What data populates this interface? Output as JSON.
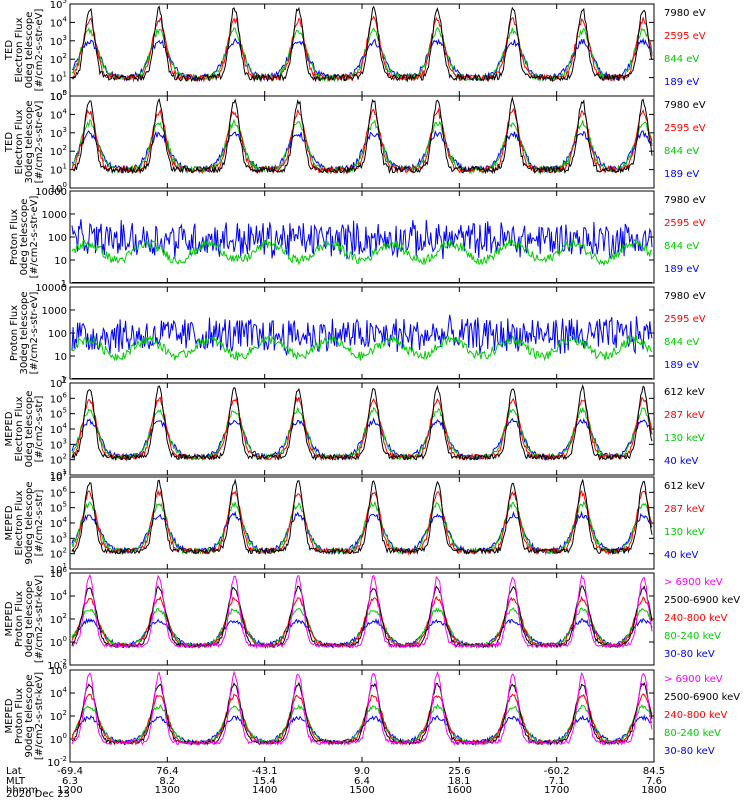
{
  "chart_data": {
    "type": "line",
    "date": "2020 Dec 23",
    "x_axis": {
      "row_labels": [
        "Lat",
        "MLT",
        "hhmm"
      ],
      "ticks": [
        {
          "Lat": "-69.4",
          "MLT": "6.3",
          "hhmm": "1200"
        },
        {
          "Lat": "76.4",
          "MLT": "8.2",
          "hhmm": "1300"
        },
        {
          "Lat": "-43.1",
          "MLT": "15.4",
          "hhmm": "1400"
        },
        {
          "Lat": "9.0",
          "MLT": "6.4",
          "hhmm": "1500"
        },
        {
          "Lat": "25.6",
          "MLT": "18.1",
          "hhmm": "1600"
        },
        {
          "Lat": "-60.2",
          "MLT": "7.1",
          "hhmm": "1700"
        },
        {
          "Lat": "84.5",
          "MLT": "7.6",
          "hhmm": "1800"
        }
      ]
    },
    "panels": [
      {
        "ylabel": [
          "TED",
          "Electron Flux",
          "0deg telescope",
          "[#/cm2-s-str-eV]"
        ],
        "yscale": "log",
        "ylim": [
          1,
          100000
        ],
        "yticks": [
          [
            "10",
            "0"
          ],
          [
            "10",
            "1"
          ],
          [
            "10",
            "2"
          ],
          [
            "10",
            "3"
          ],
          [
            "10",
            "4"
          ],
          [
            "10",
            "5"
          ]
        ],
        "legend": [
          {
            "label": "7980 eV",
            "color": "#000000"
          },
          {
            "label": "2595 eV",
            "color": "#ff0000"
          },
          {
            "label": "844 eV",
            "color": "#00cc00"
          },
          {
            "label": "189 eV",
            "color": "#0000ff"
          }
        ]
      },
      {
        "ylabel": [
          "TED",
          "Electron Flux",
          "30deg telescope",
          "[#/cm2-s-str-eV]"
        ],
        "yscale": "log",
        "ylim": [
          1,
          100000
        ],
        "yticks": [
          [
            "10",
            "0"
          ],
          [
            "10",
            "1"
          ],
          [
            "10",
            "2"
          ],
          [
            "10",
            "3"
          ],
          [
            "10",
            "4"
          ],
          [
            "10",
            "5"
          ]
        ],
        "legend": [
          {
            "label": "7980 eV",
            "color": "#000000"
          },
          {
            "label": "2595 eV",
            "color": "#ff0000"
          },
          {
            "label": "844 eV",
            "color": "#00cc00"
          },
          {
            "label": "189 eV",
            "color": "#0000ff"
          }
        ]
      },
      {
        "ylabel": [
          "Proton Flux",
          "0deg telescope",
          "[#/cm2-s-str-eV]"
        ],
        "yscale": "log",
        "ylim": [
          1,
          10000
        ],
        "yticks": [
          [
            "1",
            ""
          ],
          [
            "10",
            ""
          ],
          [
            "100",
            ""
          ],
          [
            "1000",
            ""
          ],
          [
            "10000",
            ""
          ]
        ],
        "legend": [
          {
            "label": "7980 eV",
            "color": "#000000"
          },
          {
            "label": "2595 eV",
            "color": "#ff0000"
          },
          {
            "label": "844 eV",
            "color": "#00cc00"
          },
          {
            "label": "189 eV",
            "color": "#0000ff"
          }
        ]
      },
      {
        "ylabel": [
          "Proton Flux",
          "30deg telescope",
          "[#/cm2-s-str-eV]"
        ],
        "yscale": "log",
        "ylim": [
          1,
          10000
        ],
        "yticks": [
          [
            "1",
            ""
          ],
          [
            "10",
            ""
          ],
          [
            "100",
            ""
          ],
          [
            "1000",
            ""
          ],
          [
            "10000",
            ""
          ]
        ],
        "legend": [
          {
            "label": "7980 eV",
            "color": "#000000"
          },
          {
            "label": "2595 eV",
            "color": "#ff0000"
          },
          {
            "label": "844 eV",
            "color": "#00cc00"
          },
          {
            "label": "189 eV",
            "color": "#0000ff"
          }
        ]
      },
      {
        "ylabel": [
          "MEPED",
          "Electron Flux",
          "0deg telescope",
          "[#/cm2-s-str]"
        ],
        "yscale": "log",
        "ylim": [
          10,
          10000000
        ],
        "yticks": [
          [
            "10",
            "1"
          ],
          [
            "10",
            "2"
          ],
          [
            "10",
            "3"
          ],
          [
            "10",
            "4"
          ],
          [
            "10",
            "5"
          ],
          [
            "10",
            "6"
          ],
          [
            "10",
            "7"
          ]
        ],
        "legend": [
          {
            "label": "612 keV",
            "color": "#000000"
          },
          {
            "label": "287 keV",
            "color": "#ff0000"
          },
          {
            "label": "130 keV",
            "color": "#00cc00"
          },
          {
            "label": "40 keV",
            "color": "#0000ff"
          }
        ]
      },
      {
        "ylabel": [
          "MEPED",
          "Electron Flux",
          "90deg telescope",
          "[#/cm2-s-str]"
        ],
        "yscale": "log",
        "ylim": [
          10,
          10000000
        ],
        "yticks": [
          [
            "10",
            "1"
          ],
          [
            "10",
            "2"
          ],
          [
            "10",
            "3"
          ],
          [
            "10",
            "4"
          ],
          [
            "10",
            "5"
          ],
          [
            "10",
            "6"
          ],
          [
            "10",
            "7"
          ]
        ],
        "legend": [
          {
            "label": "612 keV",
            "color": "#000000"
          },
          {
            "label": "287 keV",
            "color": "#ff0000"
          },
          {
            "label": "130 keV",
            "color": "#00cc00"
          },
          {
            "label": "40 keV",
            "color": "#0000ff"
          }
        ]
      },
      {
        "ylabel": [
          "MEPED",
          "Proton Flux",
          "0deg telescope",
          "[#/cm2-s-str-keV]"
        ],
        "yscale": "log",
        "ylim": [
          0.01,
          1000000
        ],
        "yticks": [
          [
            "10",
            "-2"
          ],
          [
            "10",
            "0"
          ],
          [
            "10",
            "2"
          ],
          [
            "10",
            "4"
          ],
          [
            "10",
            "6"
          ]
        ],
        "legend": [
          {
            "label": "> 6900 keV",
            "color": "#ff00ff"
          },
          {
            "label": "2500-6900 keV",
            "color": "#000000"
          },
          {
            "label": "240-800 keV",
            "color": "#ff0000"
          },
          {
            "label": "80-240 keV",
            "color": "#00cc00"
          },
          {
            "label": "30-80 keV",
            "color": "#0000ff"
          }
        ]
      },
      {
        "ylabel": [
          "MEPED",
          "Proton Flux",
          "90deg telescope",
          "[#/cm2-s-str-keV]"
        ],
        "yscale": "log",
        "ylim": [
          0.01,
          1000000
        ],
        "yticks": [
          [
            "10",
            "-2"
          ],
          [
            "10",
            "0"
          ],
          [
            "10",
            "2"
          ],
          [
            "10",
            "4"
          ],
          [
            "10",
            "6"
          ]
        ],
        "legend": [
          {
            "label": "> 6900 keV",
            "color": "#ff00ff"
          },
          {
            "label": "2500-6900 keV",
            "color": "#000000"
          },
          {
            "label": "240-800 keV",
            "color": "#ff0000"
          },
          {
            "label": "80-240 keV",
            "color": "#00cc00"
          },
          {
            "label": "30-80 keV",
            "color": "#0000ff"
          }
        ]
      }
    ]
  }
}
